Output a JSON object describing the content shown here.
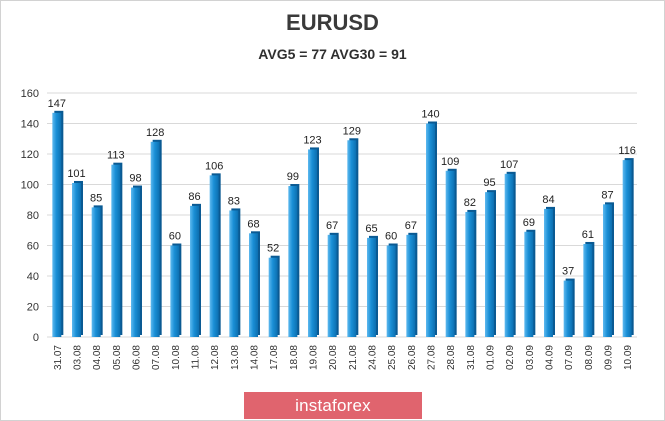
{
  "chart_data": {
    "type": "bar",
    "title": "EURUSD",
    "subtitle": "AVG5 = 77 AVG30 = 91",
    "categories": [
      "31.07",
      "03.08",
      "04.08",
      "05.08",
      "06.08",
      "07.08",
      "10.08",
      "11.08",
      "12.08",
      "13.08",
      "14.08",
      "17.08",
      "18.08",
      "19.08",
      "20.08",
      "21.08",
      "24.08",
      "25.08",
      "26.08",
      "27.08",
      "28.08",
      "31.08",
      "01.09",
      "02.09",
      "03.09",
      "04.09",
      "07.09",
      "08.09",
      "09.09",
      "10.09"
    ],
    "values": [
      147,
      101,
      85,
      113,
      98,
      128,
      60,
      86,
      106,
      83,
      68,
      52,
      99,
      123,
      67,
      129,
      65,
      60,
      67,
      140,
      109,
      82,
      95,
      107,
      69,
      84,
      37,
      61,
      87,
      116
    ],
    "ylim": [
      0,
      160
    ],
    "yticks": [
      0,
      20,
      40,
      60,
      80,
      100,
      120,
      140,
      160
    ],
    "grid": true,
    "bar_color": "#1a8fd6",
    "data_labels": true
  },
  "watermark": "instaforex",
  "watermark_color": "#e0646e"
}
